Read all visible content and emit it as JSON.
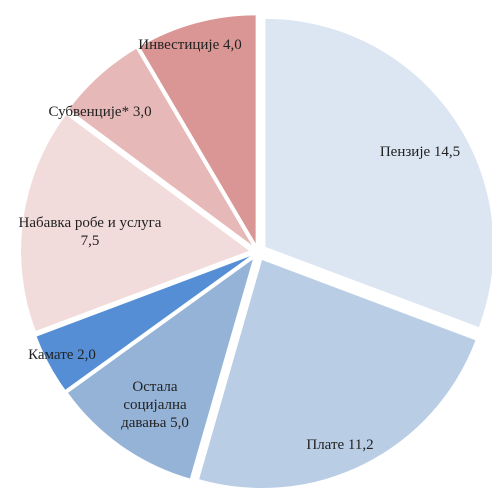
{
  "chart_data": {
    "type": "pie",
    "categories": [
      "Пензије",
      "Плате",
      "Остала социјална давања",
      "Камате",
      "Набавка робе и услуга",
      "Субвенције*",
      "Инвестиције"
    ],
    "values": [
      14.5,
      11.2,
      5.0,
      2.0,
      7.5,
      3.0,
      4.0
    ],
    "value_labels": [
      "14,5",
      "11,2",
      "5,0",
      "2,0",
      "7,5",
      "3,0",
      "4,0"
    ],
    "colors": [
      "#dce6f2",
      "#b9cde5",
      "#95b3d7",
      "#558ed5",
      "#f2dcdb",
      "#e6b9b8",
      "#d99694"
    ]
  }
}
